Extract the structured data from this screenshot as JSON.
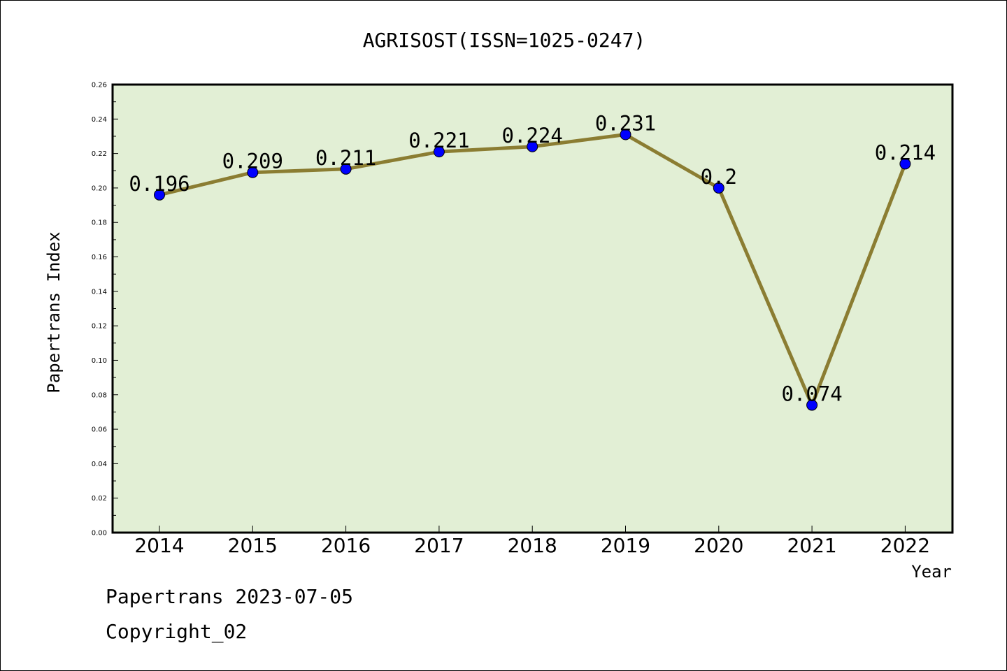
{
  "chart_data": {
    "type": "line",
    "title": "AGRISOST(ISSN=1025-0247)",
    "xlabel": "Year",
    "ylabel": "Papertrans Index",
    "categories": [
      "2014",
      "2015",
      "2016",
      "2017",
      "2018",
      "2019",
      "2020",
      "2021",
      "2022"
    ],
    "values": [
      0.196,
      0.209,
      0.211,
      0.221,
      0.224,
      0.231,
      0.2,
      0.074,
      0.214
    ],
    "data_labels": [
      "0.196",
      "0.209",
      "0.211",
      "0.221",
      "0.224",
      "0.231",
      "0.2",
      "0.074",
      "0.214"
    ],
    "ylim": [
      0,
      0.26
    ],
    "yticks": [
      "0.00",
      "0.02",
      "0.04",
      "0.06",
      "0.08",
      "0.10",
      "0.12",
      "0.14",
      "0.16",
      "0.18",
      "0.20",
      "0.22",
      "0.24",
      "0.26"
    ],
    "grid": false,
    "colors": {
      "plot_background": "#e2efd5",
      "line": "#8b7d32",
      "marker": "#0000ff"
    }
  },
  "footer": {
    "line1": "Papertrans 2023-07-05",
    "line2": "Copyright_02"
  }
}
